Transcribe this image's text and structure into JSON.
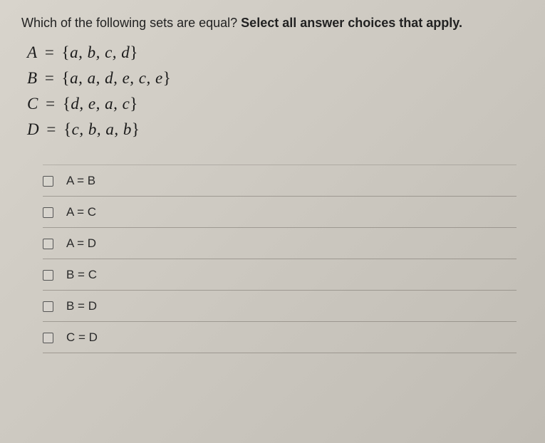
{
  "question": {
    "prompt_part1": "Which of the following sets are equal? ",
    "prompt_bold": "Select all answer choices that apply."
  },
  "sets": [
    {
      "variable": "A",
      "elements": "a, b, c, d"
    },
    {
      "variable": "B",
      "elements": "a, a, d, e, c, e"
    },
    {
      "variable": "C",
      "elements": "d, e, a, c"
    },
    {
      "variable": "D",
      "elements": "c, b, a, b"
    }
  ],
  "options": [
    {
      "label": "A = B",
      "checked": false
    },
    {
      "label": "A = C",
      "checked": false
    },
    {
      "label": "A = D",
      "checked": false
    },
    {
      "label": "B = C",
      "checked": false
    },
    {
      "label": "B = D",
      "checked": false
    },
    {
      "label": "C = D",
      "checked": false
    }
  ],
  "styles": {
    "background_gradient": [
      "#d8d4cc",
      "#c0bcb4"
    ],
    "text_color": "#1a1a1a",
    "border_color": "rgba(120,115,108,0.55)",
    "checkbox_border": "#555"
  }
}
